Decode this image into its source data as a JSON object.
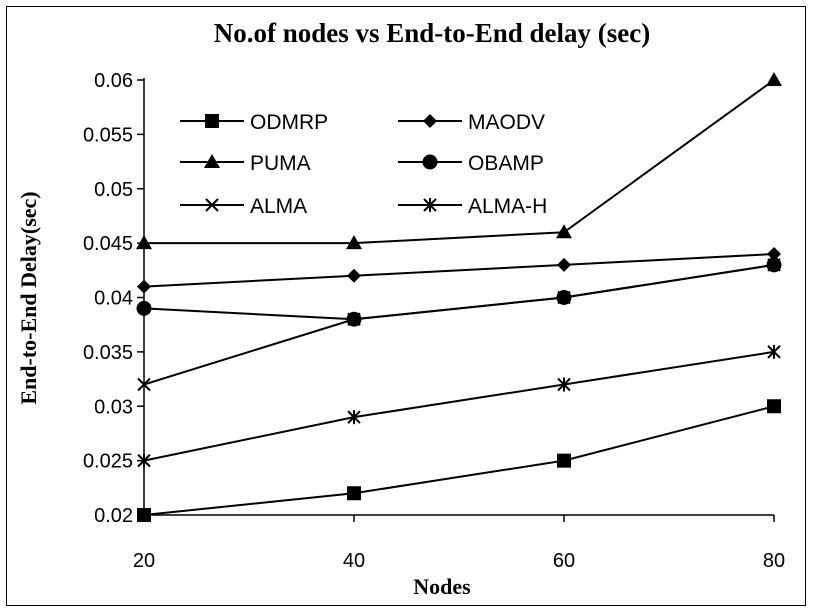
{
  "chart_data": {
    "type": "line",
    "title": "No.of nodes vs End-to-End delay (sec)",
    "xlabel": "Nodes",
    "ylabel": "End-to-End Delay(sec)",
    "x": [
      20,
      40,
      60,
      80
    ],
    "xlim": [
      20,
      80
    ],
    "ylim": [
      0.02,
      0.06
    ],
    "yticks": [
      "0.02",
      "0.025",
      "0.03",
      "0.035",
      "0.04",
      "0.045",
      "0.05",
      "0.055",
      "0.06"
    ],
    "xticks": [
      "20",
      "40",
      "60",
      "80"
    ],
    "grid": false,
    "legend_position": "top-left inside plot, two columns",
    "series": [
      {
        "name": "ODMRP",
        "marker": "square",
        "values": [
          0.02,
          0.022,
          0.025,
          0.03
        ]
      },
      {
        "name": "MAODV",
        "marker": "diamond",
        "values": [
          0.041,
          0.042,
          0.043,
          0.044
        ]
      },
      {
        "name": "PUMA",
        "marker": "triangle",
        "values": [
          0.045,
          0.045,
          0.046,
          0.06
        ]
      },
      {
        "name": "OBAMP",
        "marker": "circle",
        "values": [
          0.039,
          0.038,
          0.04,
          0.043
        ]
      },
      {
        "name": "ALMA",
        "marker": "x",
        "values": [
          0.032,
          0.038,
          0.04,
          0.043
        ]
      },
      {
        "name": "ALMA-H",
        "marker": "asterisk",
        "values": [
          0.025,
          0.029,
          0.032,
          0.035
        ]
      }
    ],
    "color": "#000000"
  }
}
